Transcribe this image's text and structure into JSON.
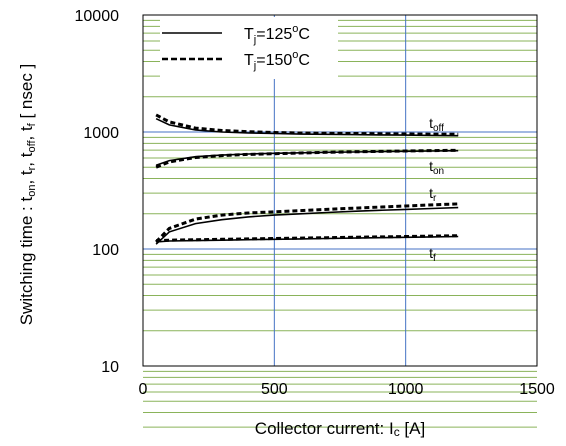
{
  "chart_data": {
    "type": "line",
    "xlabel": "Collector current: I",
    "xlabel_sub": "c",
    "xlabel_tail": " [A]",
    "ylabel": "Switching time : t",
    "ylabel_parts": [
      {
        "t": "Switching time :  t",
        "sub": "on"
      },
      {
        "t": ", t",
        "sub": "r"
      },
      {
        "t": ", t",
        "sub": "off"
      },
      {
        "t": ", t",
        "sub": "f"
      },
      {
        "t": "  [ nsec ]",
        "sub": ""
      }
    ],
    "xlim": [
      0,
      1500
    ],
    "ylim": [
      10,
      10000
    ],
    "yscale": "log",
    "x_ticks": [
      0,
      500,
      1000,
      1500
    ],
    "x_tick_labels": [
      "0",
      "500",
      "1000",
      "1500"
    ],
    "y_ticks": [
      10,
      100,
      1000,
      10000
    ],
    "y_tick_labels": [
      "10",
      "100",
      "1000",
      "10000"
    ],
    "grid": "major blue at x=500,1000 and y=100,1000; minor green horizontal at every decade step",
    "colors": {
      "major_grid": "#4472c4",
      "minor_grid": "#8ab35a",
      "line": "#000000"
    },
    "legend": {
      "placement": "top-left",
      "entries": [
        {
          "label": "T",
          "sub": "j",
          "tail": "=125",
          "sup": "o",
          "end": "C",
          "style": "solid"
        },
        {
          "label": "T",
          "sub": "j",
          "tail": "=150",
          "sup": "o",
          "end": "C",
          "style": "dashed"
        }
      ]
    },
    "curve_labels": [
      {
        "t": "t",
        "sub": "off",
        "x": 1150,
        "y": 1190
      },
      {
        "t": "t",
        "sub": "on",
        "x": 1150,
        "y": 510
      },
      {
        "t": "t",
        "sub": "r",
        "x": 1150,
        "y": 300
      },
      {
        "t": "t",
        "sub": "f",
        "x": 1150,
        "y": 92
      }
    ],
    "series": [
      {
        "name": "toff, Tj=125°C",
        "style": "solid",
        "x": [
          50,
          100,
          200,
          300,
          400,
          500,
          600,
          700,
          800,
          900,
          1000,
          1100,
          1200
        ],
        "y": [
          1300,
          1150,
          1040,
          1000,
          980,
          970,
          960,
          955,
          950,
          945,
          940,
          935,
          930
        ]
      },
      {
        "name": "toff, Tj=150°C",
        "style": "dashed",
        "x": [
          50,
          100,
          200,
          300,
          400,
          500,
          600,
          700,
          800,
          900,
          1000,
          1100,
          1200
        ],
        "y": [
          1400,
          1220,
          1080,
          1030,
          1005,
          990,
          980,
          975,
          970,
          965,
          962,
          958,
          955
        ]
      },
      {
        "name": "ton, Tj=125°C",
        "style": "solid",
        "x": [
          50,
          100,
          200,
          300,
          400,
          500,
          600,
          700,
          800,
          900,
          1000,
          1100,
          1200
        ],
        "y": [
          520,
          570,
          615,
          635,
          648,
          657,
          664,
          670,
          675,
          680,
          684,
          688,
          692
        ]
      },
      {
        "name": "ton, Tj=150°C",
        "style": "dashed",
        "x": [
          50,
          100,
          200,
          300,
          400,
          500,
          600,
          700,
          800,
          900,
          1000,
          1100,
          1200
        ],
        "y": [
          500,
          555,
          605,
          628,
          643,
          653,
          662,
          670,
          677,
          683,
          688,
          693,
          698
        ]
      },
      {
        "name": "tr, Tj=125°C",
        "style": "solid",
        "x": [
          50,
          100,
          200,
          300,
          400,
          500,
          600,
          700,
          800,
          900,
          1000,
          1100,
          1200
        ],
        "y": [
          110,
          140,
          165,
          178,
          188,
          195,
          200,
          205,
          210,
          214,
          218,
          222,
          226
        ]
      },
      {
        "name": "tr, Tj=150°C",
        "style": "dashed",
        "x": [
          50,
          100,
          200,
          300,
          400,
          500,
          600,
          700,
          800,
          900,
          1000,
          1100,
          1200
        ],
        "y": [
          115,
          150,
          180,
          195,
          203,
          208,
          213,
          218,
          223,
          228,
          233,
          238,
          243
        ]
      },
      {
        "name": "tf, Tj=125°C",
        "style": "solid",
        "x": [
          50,
          100,
          200,
          300,
          400,
          500,
          600,
          700,
          800,
          900,
          1000,
          1100,
          1200
        ],
        "y": [
          115,
          117,
          118,
          119,
          120,
          121,
          122,
          123,
          124,
          125,
          126,
          127,
          128
        ]
      },
      {
        "name": "tf, Tj=150°C",
        "style": "dashed",
        "x": [
          50,
          100,
          200,
          300,
          400,
          500,
          600,
          700,
          800,
          900,
          1000,
          1100,
          1200
        ],
        "y": [
          118,
          119,
          120,
          121,
          122,
          123,
          124,
          125,
          126,
          127,
          128,
          129,
          130
        ]
      }
    ]
  }
}
